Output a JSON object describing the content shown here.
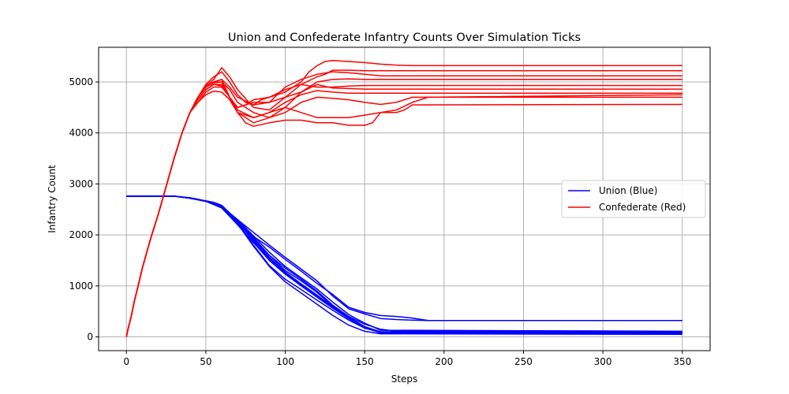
{
  "chart_data": {
    "type": "line",
    "title": "Union and Confederate Infantry Counts Over Simulation Ticks",
    "xlabel": "Steps",
    "ylabel": "Infantry Count",
    "xlim": [
      -17.5,
      367.5
    ],
    "ylim": [
      -270,
      5680
    ],
    "xticks": [
      0,
      50,
      100,
      150,
      200,
      250,
      300,
      350
    ],
    "yticks": [
      0,
      1000,
      2000,
      3000,
      4000,
      5000
    ],
    "grid": true,
    "legend_position": "right",
    "series": [
      {
        "name": "Union (Blue)",
        "group": "Union (Blue)",
        "color": "#0000ff",
        "legend": true,
        "x": [
          0,
          30,
          40,
          50,
          55,
          60,
          65,
          70,
          75,
          80,
          90,
          100,
          110,
          120,
          130,
          140,
          150,
          160,
          170,
          180,
          190,
          350
        ],
        "y": [
          2760,
          2760,
          2730,
          2670,
          2640,
          2580,
          2430,
          2250,
          2120,
          1970,
          1760,
          1520,
          1290,
          1050,
          830,
          580,
          480,
          420,
          400,
          370,
          320,
          320
        ]
      },
      {
        "name": "",
        "group": "Union (Blue)",
        "color": "#0000ff",
        "legend": false,
        "x": [
          0,
          30,
          40,
          50,
          60,
          70,
          80,
          90,
          100,
          110,
          120,
          130,
          140,
          150,
          160,
          170,
          180,
          190,
          350
        ],
        "y": [
          2760,
          2760,
          2720,
          2660,
          2560,
          2300,
          2050,
          1800,
          1560,
          1330,
          1100,
          800,
          550,
          450,
          360,
          340,
          330,
          320,
          320
        ]
      },
      {
        "name": "",
        "group": "Union (Blue)",
        "color": "#0000ff",
        "legend": false,
        "x": [
          0,
          30,
          40,
          50,
          60,
          70,
          80,
          90,
          100,
          110,
          120,
          130,
          140,
          150,
          160,
          170,
          350
        ],
        "y": [
          2760,
          2760,
          2720,
          2660,
          2550,
          2250,
          1900,
          1600,
          1350,
          1130,
          900,
          620,
          400,
          250,
          150,
          110,
          100
        ]
      },
      {
        "name": "",
        "group": "Union (Blue)",
        "color": "#0000ff",
        "legend": false,
        "x": [
          0,
          30,
          40,
          50,
          60,
          70,
          80,
          90,
          100,
          110,
          120,
          130,
          140,
          150,
          160,
          350
        ],
        "y": [
          2760,
          2760,
          2720,
          2660,
          2560,
          2240,
          1800,
          1400,
          1130,
          930,
          720,
          520,
          330,
          170,
          90,
          80
        ]
      },
      {
        "name": "",
        "group": "Union (Blue)",
        "color": "#0000ff",
        "legend": false,
        "x": [
          0,
          30,
          40,
          50,
          60,
          70,
          80,
          90,
          100,
          110,
          120,
          130,
          140,
          150,
          160,
          350
        ],
        "y": [
          2760,
          2760,
          2720,
          2660,
          2530,
          2220,
          1780,
          1380,
          1080,
          860,
          640,
          420,
          230,
          110,
          60,
          50
        ]
      },
      {
        "name": "",
        "group": "Union (Blue)",
        "color": "#0000ff",
        "legend": false,
        "x": [
          0,
          30,
          40,
          50,
          60,
          70,
          80,
          90,
          100,
          110,
          120,
          130,
          140,
          150,
          160,
          350
        ],
        "y": [
          2760,
          2760,
          2720,
          2660,
          2540,
          2260,
          1950,
          1600,
          1300,
          1100,
          870,
          600,
          380,
          200,
          100,
          90
        ]
      },
      {
        "name": "",
        "group": "Union (Blue)",
        "color": "#0000ff",
        "legend": false,
        "x": [
          0,
          30,
          40,
          50,
          60,
          70,
          80,
          90,
          100,
          110,
          120,
          130,
          140,
          150,
          160,
          350
        ],
        "y": [
          2760,
          2760,
          2720,
          2660,
          2550,
          2300,
          1980,
          1660,
          1380,
          1160,
          940,
          680,
          440,
          270,
          130,
          110
        ]
      },
      {
        "name": "",
        "group": "Union (Blue)",
        "color": "#0000ff",
        "legend": false,
        "x": [
          0,
          30,
          40,
          50,
          60,
          70,
          80,
          90,
          100,
          110,
          120,
          130,
          140,
          150,
          160,
          350
        ],
        "y": [
          2760,
          2760,
          2720,
          2660,
          2530,
          2200,
          1850,
          1500,
          1230,
          1000,
          780,
          560,
          360,
          180,
          80,
          70
        ]
      },
      {
        "name": "",
        "group": "Union (Blue)",
        "color": "#0000ff",
        "legend": false,
        "x": [
          0,
          30,
          40,
          50,
          60,
          70,
          80,
          90,
          100,
          110,
          120,
          130,
          140,
          150,
          160,
          350
        ],
        "y": [
          2760,
          2760,
          2720,
          2660,
          2550,
          2280,
          1920,
          1560,
          1270,
          1040,
          820,
          590,
          390,
          200,
          90,
          80
        ]
      },
      {
        "name": "",
        "group": "Union (Blue)",
        "color": "#0000ff",
        "legend": false,
        "x": [
          0,
          30,
          40,
          50,
          60,
          70,
          80,
          90,
          100,
          110,
          120,
          130,
          140,
          150,
          160,
          350
        ],
        "y": [
          2760,
          2760,
          2720,
          2660,
          2540,
          2250,
          1880,
          1530,
          1250,
          1020,
          800,
          570,
          370,
          190,
          100,
          90
        ]
      },
      {
        "name": "Confederate (Red)",
        "group": "Confederate (Red)",
        "color": "#ff0000",
        "legend": true,
        "x": [
          0,
          1,
          3,
          5,
          7,
          10,
          15,
          20,
          25,
          30,
          35,
          40,
          45,
          50,
          55,
          60,
          65,
          70,
          75,
          80,
          85,
          90,
          100,
          110,
          115,
          120,
          125,
          130,
          140,
          150,
          160,
          170,
          180,
          190,
          350
        ],
        "y": [
          0,
          150,
          400,
          700,
          950,
          1350,
          1900,
          2400,
          2950,
          3500,
          4000,
          4400,
          4700,
          4950,
          5100,
          5200,
          5000,
          4750,
          4600,
          4550,
          4650,
          4700,
          4800,
          5000,
          5200,
          5320,
          5400,
          5420,
          5400,
          5380,
          5350,
          5330,
          5320,
          5320,
          5320
        ]
      },
      {
        "name": "",
        "group": "Confederate (Red)",
        "color": "#ff0000",
        "legend": false,
        "x": [
          0,
          1,
          3,
          5,
          7,
          10,
          15,
          20,
          25,
          30,
          35,
          40,
          45,
          50,
          55,
          60,
          65,
          70,
          80,
          90,
          100,
          110,
          120,
          125,
          130,
          140,
          150,
          350
        ],
        "y": [
          0,
          150,
          400,
          700,
          950,
          1350,
          1900,
          2400,
          2950,
          3500,
          4000,
          4400,
          4700,
          4920,
          5050,
          5280,
          5100,
          4850,
          4500,
          4450,
          4700,
          4950,
          5100,
          5150,
          5230,
          5230,
          5220,
          5220
        ]
      },
      {
        "name": "",
        "group": "Confederate (Red)",
        "color": "#ff0000",
        "legend": false,
        "x": [
          0,
          1,
          3,
          5,
          7,
          10,
          15,
          20,
          25,
          30,
          35,
          40,
          45,
          50,
          55,
          60,
          65,
          70,
          80,
          90,
          100,
          110,
          120,
          130,
          140,
          150,
          160,
          350
        ],
        "y": [
          0,
          150,
          400,
          700,
          950,
          1350,
          1900,
          2400,
          2950,
          3500,
          4000,
          4400,
          4700,
          4900,
          5000,
          5050,
          4900,
          4700,
          4550,
          4600,
          4900,
          5050,
          5150,
          5200,
          5180,
          5150,
          5120,
          5120
        ]
      },
      {
        "name": "",
        "group": "Confederate (Red)",
        "color": "#ff0000",
        "legend": false,
        "x": [
          0,
          1,
          3,
          5,
          7,
          10,
          15,
          20,
          25,
          30,
          35,
          40,
          45,
          50,
          55,
          60,
          65,
          70,
          80,
          90,
          100,
          110,
          120,
          130,
          140,
          150,
          350
        ],
        "y": [
          0,
          150,
          400,
          700,
          950,
          1350,
          1900,
          2400,
          2950,
          3500,
          4000,
          4400,
          4700,
          4900,
          4980,
          5000,
          4850,
          4600,
          4400,
          4300,
          4500,
          4800,
          5000,
          5050,
          5060,
          5050,
          5050
        ]
      },
      {
        "name": "",
        "group": "Confederate (Red)",
        "color": "#ff0000",
        "legend": false,
        "x": [
          0,
          1,
          3,
          5,
          7,
          10,
          15,
          20,
          25,
          30,
          35,
          40,
          45,
          50,
          55,
          60,
          65,
          70,
          75,
          80,
          90,
          100,
          110,
          120,
          130,
          140,
          150,
          160,
          350
        ],
        "y": [
          0,
          150,
          400,
          700,
          950,
          1350,
          1900,
          2400,
          2950,
          3500,
          4000,
          4400,
          4650,
          4850,
          4950,
          4920,
          4700,
          4500,
          4550,
          4650,
          4700,
          4850,
          4950,
          4900,
          4900,
          4920,
          4930,
          4930,
          4930
        ]
      },
      {
        "name": "",
        "group": "Confederate (Red)",
        "color": "#ff0000",
        "legend": false,
        "x": [
          0,
          1,
          3,
          5,
          7,
          10,
          15,
          20,
          25,
          30,
          35,
          40,
          45,
          50,
          55,
          60,
          65,
          70,
          80,
          90,
          100,
          110,
          120,
          130,
          140,
          150,
          160,
          350
        ],
        "y": [
          0,
          150,
          400,
          700,
          950,
          1350,
          1900,
          2400,
          2950,
          3500,
          4000,
          4400,
          4600,
          4800,
          4900,
          4900,
          4700,
          4500,
          4600,
          4600,
          4700,
          4800,
          4950,
          4880,
          4870,
          4860,
          4860,
          4860
        ]
      },
      {
        "name": "",
        "group": "Confederate (Red)",
        "color": "#ff0000",
        "legend": false,
        "x": [
          0,
          1,
          3,
          5,
          7,
          10,
          15,
          20,
          25,
          30,
          35,
          40,
          45,
          50,
          55,
          60,
          65,
          70,
          80,
          90,
          100,
          110,
          120,
          130,
          140,
          150,
          160,
          350
        ],
        "y": [
          0,
          150,
          400,
          700,
          950,
          1350,
          1900,
          2400,
          2950,
          3500,
          4000,
          4400,
          4600,
          4750,
          4820,
          4800,
          4650,
          4400,
          4300,
          4400,
          4600,
          4750,
          4830,
          4800,
          4780,
          4780,
          4780,
          4780
        ]
      },
      {
        "name": "",
        "group": "Confederate (Red)",
        "color": "#ff0000",
        "legend": false,
        "x": [
          0,
          1,
          3,
          5,
          7,
          10,
          15,
          20,
          25,
          30,
          35,
          40,
          45,
          50,
          55,
          60,
          65,
          70,
          80,
          90,
          100,
          110,
          120,
          130,
          140,
          150,
          160,
          170,
          175,
          180,
          350
        ],
        "y": [
          0,
          150,
          400,
          700,
          950,
          1350,
          1900,
          2400,
          2950,
          3500,
          4000,
          4400,
          4650,
          4850,
          4950,
          4950,
          4700,
          4400,
          4200,
          4300,
          4400,
          4600,
          4700,
          4680,
          4650,
          4600,
          4560,
          4600,
          4650,
          4700,
          4700
        ]
      },
      {
        "name": "",
        "group": "Confederate (Red)",
        "color": "#ff0000",
        "legend": false,
        "x": [
          0,
          1,
          3,
          5,
          7,
          10,
          15,
          20,
          25,
          30,
          35,
          40,
          45,
          50,
          55,
          60,
          65,
          70,
          80,
          90,
          100,
          110,
          120,
          130,
          140,
          150,
          160,
          170,
          180,
          190,
          350
        ],
        "y": [
          0,
          150,
          400,
          700,
          950,
          1350,
          1900,
          2400,
          2950,
          3500,
          4000,
          4400,
          4700,
          4900,
          5000,
          5000,
          4700,
          4450,
          4300,
          4400,
          4500,
          4400,
          4300,
          4300,
          4300,
          4350,
          4400,
          4450,
          4600,
          4700,
          4750
        ]
      },
      {
        "name": "",
        "group": "Confederate (Red)",
        "color": "#ff0000",
        "legend": false,
        "x": [
          0,
          1,
          3,
          5,
          7,
          10,
          15,
          20,
          25,
          30,
          35,
          40,
          45,
          50,
          55,
          60,
          65,
          70,
          75,
          80,
          90,
          100,
          110,
          120,
          130,
          140,
          150,
          155,
          160,
          170,
          175,
          180,
          350
        ],
        "y": [
          0,
          150,
          400,
          700,
          950,
          1350,
          1900,
          2400,
          2950,
          3500,
          4000,
          4400,
          4700,
          4900,
          5000,
          5050,
          4700,
          4400,
          4200,
          4130,
          4200,
          4250,
          4250,
          4200,
          4200,
          4150,
          4150,
          4200,
          4400,
          4400,
          4450,
          4550,
          4560
        ]
      }
    ]
  }
}
